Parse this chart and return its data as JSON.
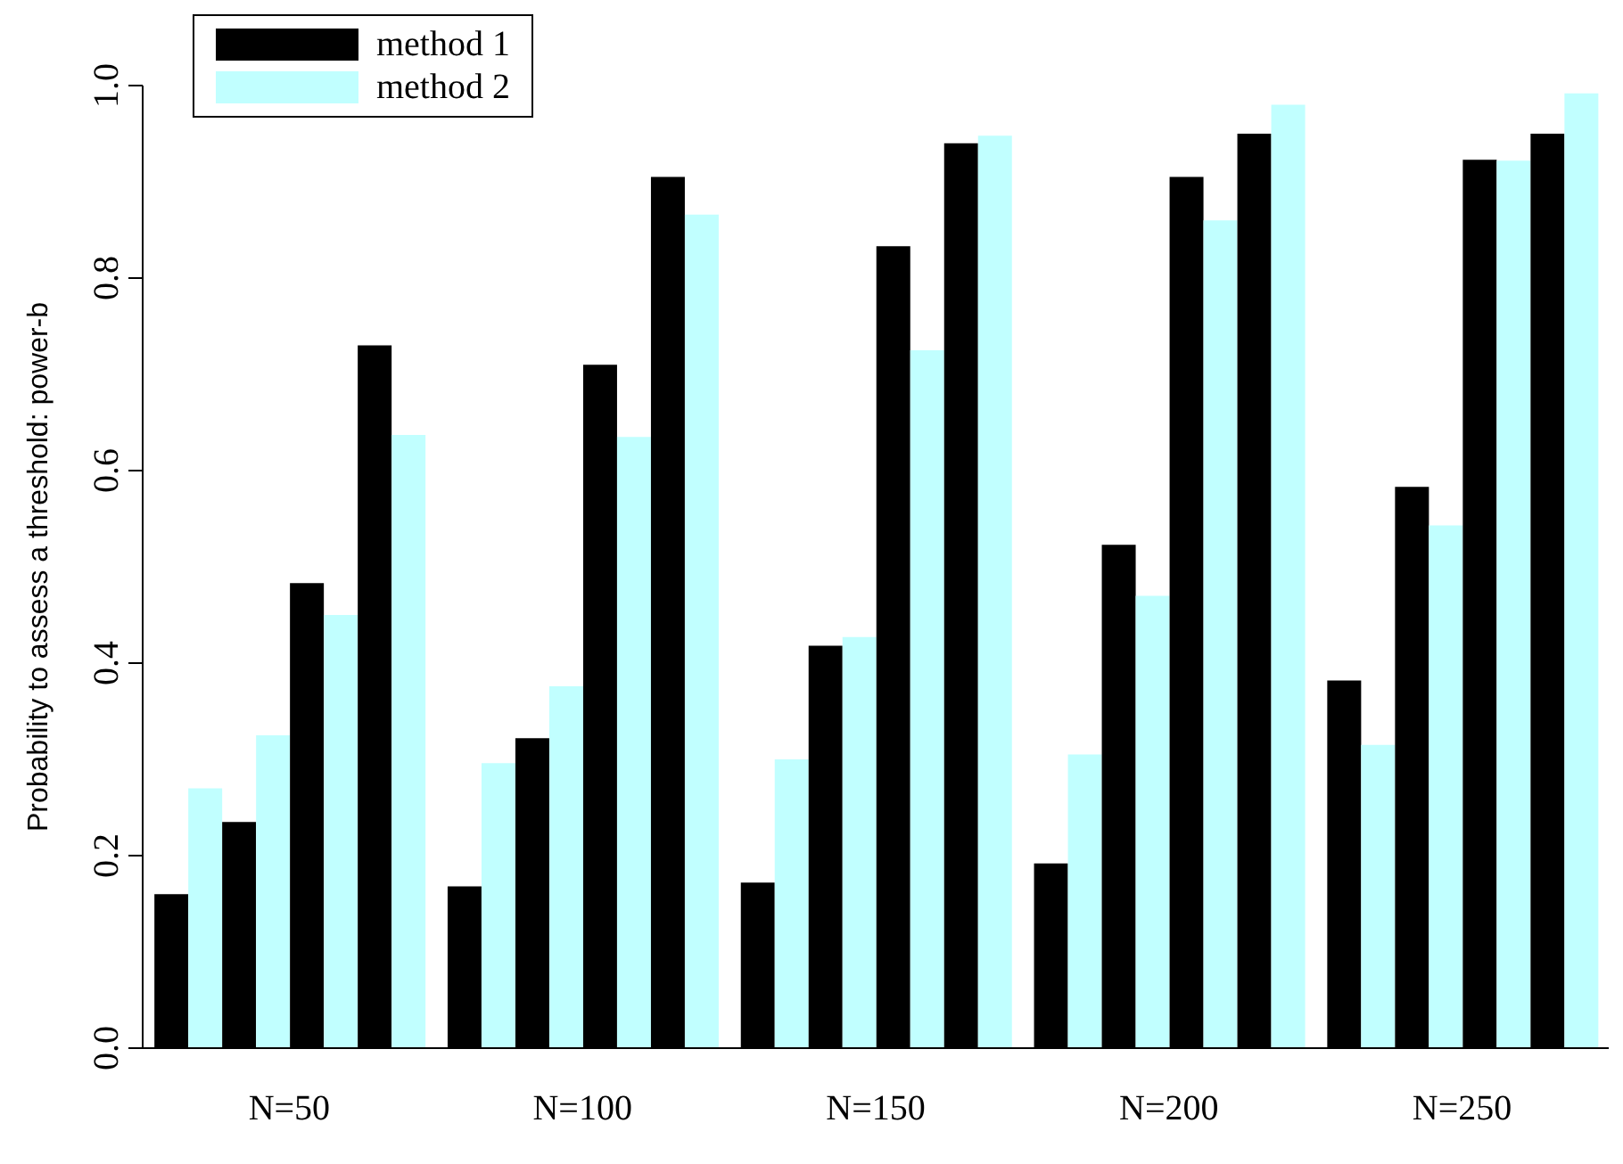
{
  "chart_data": {
    "type": "bar",
    "ylabel": "Probability to assess a threshold: power-b",
    "categories": [
      "N=50",
      "N=100",
      "N=150",
      "N=200",
      "N=250"
    ],
    "series": [
      {
        "name": "method 1",
        "color": "#000000",
        "values": [
          0.16,
          0.168,
          0.172,
          0.192,
          0.382
        ]
      },
      {
        "name": "method 2",
        "color": "#c1ffff",
        "values": [
          0.27,
          0.296,
          0.3,
          0.305,
          0.315
        ]
      },
      {
        "color": "#000000",
        "values": [
          0.235,
          0.322,
          0.418,
          0.523,
          0.583
        ]
      },
      {
        "color": "#c1ffff",
        "values": [
          0.325,
          0.376,
          0.427,
          0.47,
          0.543
        ]
      },
      {
        "color": "#000000",
        "values": [
          0.483,
          0.71,
          0.833,
          0.905,
          0.923
        ]
      },
      {
        "color": "#c1ffff",
        "values": [
          0.45,
          0.635,
          0.725,
          0.86,
          0.922
        ]
      },
      {
        "color": "#000000",
        "values": [
          0.73,
          0.905,
          0.94,
          0.95,
          0.95
        ]
      },
      {
        "color": "#c1ffff",
        "values": [
          0.637,
          0.866,
          0.948,
          0.98,
          0.992
        ]
      }
    ],
    "ylim": [
      0,
      1
    ],
    "yticks": [
      {
        "value": 0,
        "label": "0.0"
      },
      {
        "value": 0.2,
        "label": "0.2"
      },
      {
        "value": 0.4,
        "label": "0.4"
      },
      {
        "value": 0.6,
        "label": "0.6"
      },
      {
        "value": 0.8,
        "label": "0.8"
      },
      {
        "value": 1,
        "label": "1.0"
      }
    ],
    "grid": false,
    "legend": "top left"
  }
}
